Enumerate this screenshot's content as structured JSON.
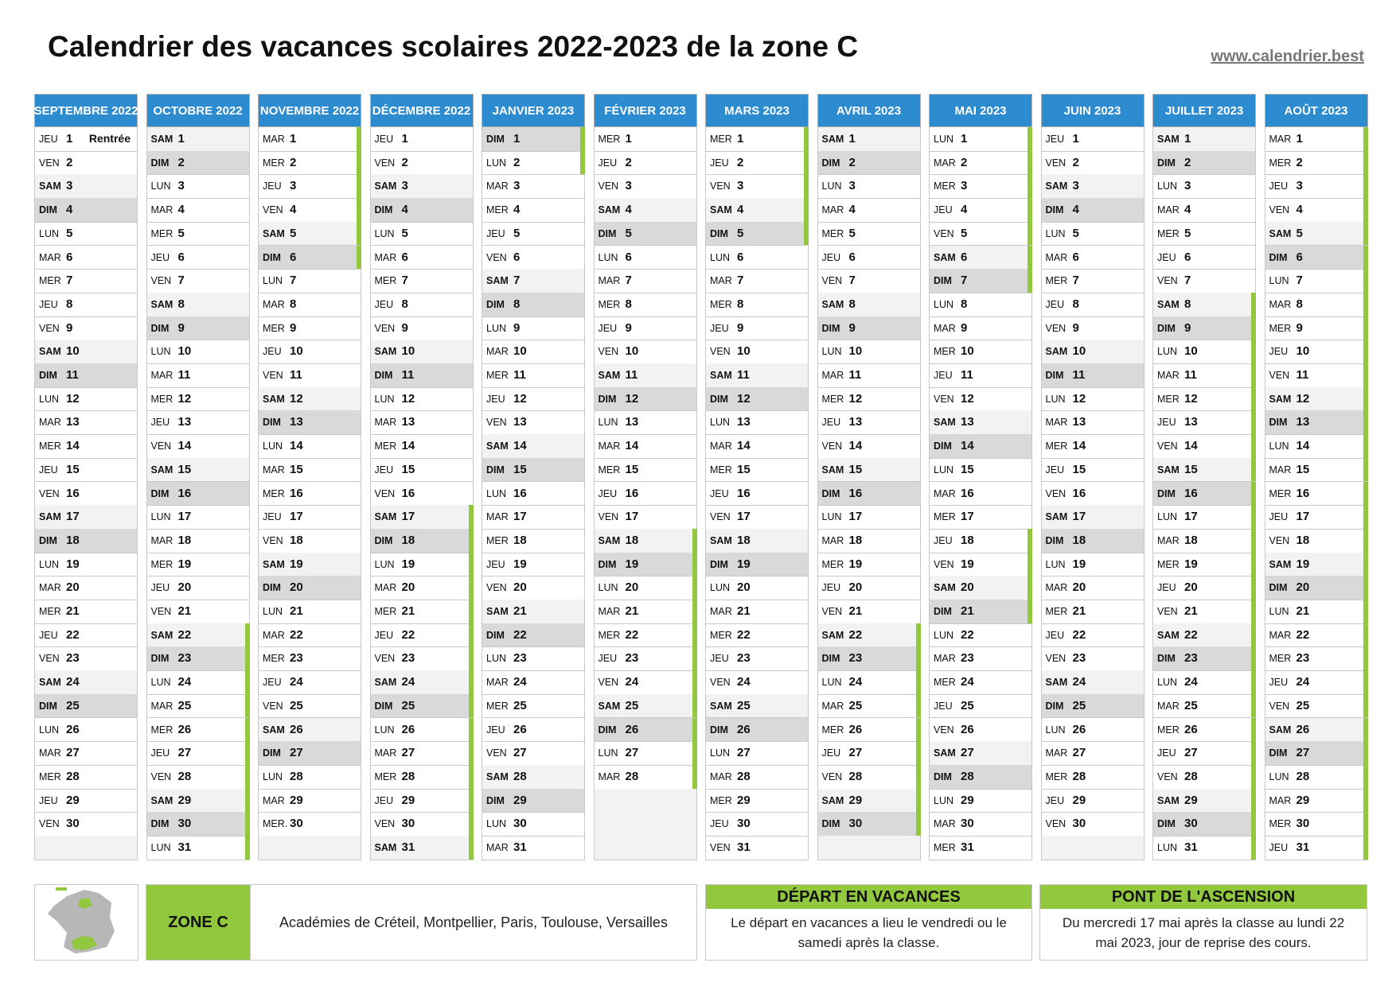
{
  "header": {
    "title": "Calendrier des vacances scolaires 2022-2023 de la zone C",
    "url": "www.calendrier.best"
  },
  "months": [
    {
      "name": "SEPTEMBRE 2022",
      "days": [
        [
          "JEU",
          1,
          "Rentrée"
        ],
        [
          "VEN",
          2
        ],
        [
          "SAM",
          3
        ],
        [
          "DIM",
          4
        ],
        [
          "LUN",
          5
        ],
        [
          "MAR",
          6
        ],
        [
          "MER",
          7
        ],
        [
          "JEU",
          8
        ],
        [
          "VEN",
          9
        ],
        [
          "SAM",
          10
        ],
        [
          "DIM",
          11
        ],
        [
          "LUN",
          12
        ],
        [
          "MAR",
          13
        ],
        [
          "MER",
          14
        ],
        [
          "JEU",
          15
        ],
        [
          "VEN",
          16
        ],
        [
          "SAM",
          17
        ],
        [
          "DIM",
          18
        ],
        [
          "LUN",
          19
        ],
        [
          "MAR",
          20
        ],
        [
          "MER",
          21
        ],
        [
          "JEU",
          22
        ],
        [
          "VEN",
          23
        ],
        [
          "SAM",
          24
        ],
        [
          "DIM",
          25
        ],
        [
          "LUN",
          26
        ],
        [
          "MAR",
          27
        ],
        [
          "MER",
          28
        ],
        [
          "JEU",
          29
        ],
        [
          "VEN",
          30
        ]
      ]
    },
    {
      "name": "OCTOBRE 2022",
      "days": [
        [
          "SAM",
          1
        ],
        [
          "DIM",
          2
        ],
        [
          "LUN",
          3
        ],
        [
          "MAR",
          4
        ],
        [
          "MER",
          5
        ],
        [
          "JEU",
          6
        ],
        [
          "VEN",
          7
        ],
        [
          "SAM",
          8
        ],
        [
          "DIM",
          9
        ],
        [
          "LUN",
          10
        ],
        [
          "MAR",
          11
        ],
        [
          "MER",
          12
        ],
        [
          "JEU",
          13
        ],
        [
          "VEN",
          14
        ],
        [
          "SAM",
          15
        ],
        [
          "DIM",
          16
        ],
        [
          "LUN",
          17
        ],
        [
          "MAR",
          18
        ],
        [
          "MER",
          19
        ],
        [
          "JEU",
          20
        ],
        [
          "VEN",
          21
        ],
        [
          "SAM",
          22
        ],
        [
          "DIM",
          23
        ],
        [
          "LUN",
          24
        ],
        [
          "MAR",
          25
        ],
        [
          "MER",
          26
        ],
        [
          "JEU",
          27
        ],
        [
          "VEN",
          28
        ],
        [
          "SAM",
          29
        ],
        [
          "DIM",
          30
        ],
        [
          "LUN",
          31
        ]
      ]
    },
    {
      "name": "NOVEMBRE 2022",
      "days": [
        [
          "MAR",
          1
        ],
        [
          "MER",
          2
        ],
        [
          "JEU",
          3
        ],
        [
          "VEN",
          4
        ],
        [
          "SAM",
          5
        ],
        [
          "DIM",
          6
        ],
        [
          "LUN",
          7
        ],
        [
          "MAR",
          8
        ],
        [
          "MER",
          9
        ],
        [
          "JEU",
          10
        ],
        [
          "VEN",
          11
        ],
        [
          "SAM",
          12
        ],
        [
          "DIM",
          13
        ],
        [
          "LUN",
          14
        ],
        [
          "MAR",
          15
        ],
        [
          "MER",
          16
        ],
        [
          "JEU",
          17
        ],
        [
          "VEN",
          18
        ],
        [
          "SAM",
          19
        ],
        [
          "DIM",
          20
        ],
        [
          "LUN",
          21
        ],
        [
          "MAR",
          22
        ],
        [
          "MER",
          23
        ],
        [
          "JEU",
          24
        ],
        [
          "VEN",
          25
        ],
        [
          "SAM",
          26
        ],
        [
          "DIM",
          27
        ],
        [
          "LUN",
          28
        ],
        [
          "MAR",
          29
        ],
        [
          "MER.",
          30
        ]
      ]
    },
    {
      "name": "DÉCEMBRE 2022",
      "days": [
        [
          "JEU",
          1
        ],
        [
          "VEN",
          2
        ],
        [
          "SAM",
          3
        ],
        [
          "DIM",
          4
        ],
        [
          "LUN",
          5
        ],
        [
          "MAR",
          6
        ],
        [
          "MER",
          7
        ],
        [
          "JEU",
          8
        ],
        [
          "VEN",
          9
        ],
        [
          "SAM",
          10
        ],
        [
          "DIM",
          11
        ],
        [
          "LUN",
          12
        ],
        [
          "MAR",
          13
        ],
        [
          "MER",
          14
        ],
        [
          "JEU",
          15
        ],
        [
          "VEN",
          16
        ],
        [
          "SAM",
          17
        ],
        [
          "DIM",
          18
        ],
        [
          "LUN",
          19
        ],
        [
          "MAR",
          20
        ],
        [
          "MER",
          21
        ],
        [
          "JEU",
          22
        ],
        [
          "VEN",
          23
        ],
        [
          "SAM",
          24
        ],
        [
          "DIM",
          25
        ],
        [
          "LUN",
          26
        ],
        [
          "MAR",
          27
        ],
        [
          "MER",
          28
        ],
        [
          "JEU",
          29
        ],
        [
          "VEN",
          30
        ],
        [
          "SAM",
          31
        ]
      ]
    },
    {
      "name": "JANVIER 2023",
      "days": [
        [
          "DIM",
          1
        ],
        [
          "LUN",
          2
        ],
        [
          "MAR",
          3
        ],
        [
          "MER",
          4
        ],
        [
          "JEU",
          5
        ],
        [
          "VEN",
          6
        ],
        [
          "SAM",
          7
        ],
        [
          "DIM",
          8
        ],
        [
          "LUN",
          9
        ],
        [
          "MAR",
          10
        ],
        [
          "MER",
          11
        ],
        [
          "JEU",
          12
        ],
        [
          "VEN",
          13
        ],
        [
          "SAM",
          14
        ],
        [
          "DIM",
          15
        ],
        [
          "LUN",
          16
        ],
        [
          "MAR",
          17
        ],
        [
          "MER",
          18
        ],
        [
          "JEU",
          19
        ],
        [
          "VEN",
          20
        ],
        [
          "SAM",
          21
        ],
        [
          "DIM",
          22
        ],
        [
          "LUN",
          23
        ],
        [
          "MAR",
          24
        ],
        [
          "MER",
          25
        ],
        [
          "JEU",
          26
        ],
        [
          "VEN",
          27
        ],
        [
          "SAM",
          28
        ],
        [
          "DIM",
          29
        ],
        [
          "LUN",
          30
        ],
        [
          "MAR",
          31
        ]
      ]
    },
    {
      "name": "FÉVRIER 2023",
      "days": [
        [
          "MER",
          1
        ],
        [
          "JEU",
          2
        ],
        [
          "VEN",
          3
        ],
        [
          "SAM",
          4
        ],
        [
          "DIM",
          5
        ],
        [
          "LUN",
          6
        ],
        [
          "MAR",
          7
        ],
        [
          "MER",
          8
        ],
        [
          "JEU",
          9
        ],
        [
          "VEN",
          10
        ],
        [
          "SAM",
          11
        ],
        [
          "DIM",
          12
        ],
        [
          "LUN",
          13
        ],
        [
          "MAR",
          14
        ],
        [
          "MER",
          15
        ],
        [
          "JEU",
          16
        ],
        [
          "VEN",
          17
        ],
        [
          "SAM",
          18
        ],
        [
          "DIM",
          19
        ],
        [
          "LUN",
          20
        ],
        [
          "MAR",
          21
        ],
        [
          "MER",
          22
        ],
        [
          "JEU",
          23
        ],
        [
          "VEN",
          24
        ],
        [
          "SAM",
          25
        ],
        [
          "DIM",
          26
        ],
        [
          "LUN",
          27
        ],
        [
          "MAR",
          28
        ]
      ]
    },
    {
      "name": "MARS 2023",
      "days": [
        [
          "MER",
          1
        ],
        [
          "JEU",
          2
        ],
        [
          "VEN",
          3
        ],
        [
          "SAM",
          4
        ],
        [
          "DIM",
          5
        ],
        [
          "LUN",
          6
        ],
        [
          "MAR",
          7
        ],
        [
          "MER",
          8
        ],
        [
          "JEU",
          9
        ],
        [
          "VEN",
          10
        ],
        [
          "SAM",
          11
        ],
        [
          "DIM",
          12
        ],
        [
          "LUN",
          13
        ],
        [
          "MAR",
          14
        ],
        [
          "MER",
          15
        ],
        [
          "JEU",
          16
        ],
        [
          "VEN",
          17
        ],
        [
          "SAM",
          18
        ],
        [
          "DIM",
          19
        ],
        [
          "LUN",
          20
        ],
        [
          "MAR",
          21
        ],
        [
          "MER",
          22
        ],
        [
          "JEU",
          23
        ],
        [
          "VEN",
          24
        ],
        [
          "SAM",
          25
        ],
        [
          "DIM",
          26
        ],
        [
          "LUN",
          27
        ],
        [
          "MAR",
          28
        ],
        [
          "MER",
          29
        ],
        [
          "JEU",
          30
        ],
        [
          "VEN",
          31
        ]
      ]
    },
    {
      "name": "AVRIL 2023",
      "days": [
        [
          "SAM",
          1
        ],
        [
          "DIM",
          2
        ],
        [
          "LUN",
          3
        ],
        [
          "MAR",
          4
        ],
        [
          "MER",
          5
        ],
        [
          "JEU",
          6
        ],
        [
          "VEN",
          7
        ],
        [
          "SAM",
          8
        ],
        [
          "DIM",
          9
        ],
        [
          "LUN",
          10
        ],
        [
          "MAR",
          11
        ],
        [
          "MER",
          12
        ],
        [
          "JEU",
          13
        ],
        [
          "VEN",
          14
        ],
        [
          "SAM",
          15
        ],
        [
          "DIM",
          16
        ],
        [
          "LUN",
          17
        ],
        [
          "MAR",
          18
        ],
        [
          "MER",
          19
        ],
        [
          "JEU",
          20
        ],
        [
          "VEN",
          21
        ],
        [
          "SAM",
          22
        ],
        [
          "DIM",
          23
        ],
        [
          "LUN",
          24
        ],
        [
          "MAR",
          25
        ],
        [
          "MER",
          26
        ],
        [
          "JEU",
          27
        ],
        [
          "VEN",
          28
        ],
        [
          "SAM",
          29
        ],
        [
          "DIM",
          30
        ]
      ]
    },
    {
      "name": "MAI 2023",
      "days": [
        [
          "LUN",
          1
        ],
        [
          "MAR",
          2
        ],
        [
          "MER",
          3
        ],
        [
          "JEU",
          4
        ],
        [
          "VEN",
          5
        ],
        [
          "SAM",
          6
        ],
        [
          "DIM",
          7
        ],
        [
          "LUN",
          8
        ],
        [
          "MAR",
          9
        ],
        [
          "MER",
          10
        ],
        [
          "JEU",
          11
        ],
        [
          "VEN",
          12
        ],
        [
          "SAM",
          13
        ],
        [
          "DIM",
          14
        ],
        [
          "LUN",
          15
        ],
        [
          "MAR",
          16
        ],
        [
          "MER",
          17
        ],
        [
          "JEU",
          18
        ],
        [
          "VEN",
          19
        ],
        [
          "SAM",
          20
        ],
        [
          "DIM",
          21
        ],
        [
          "LUN",
          22
        ],
        [
          "MAR",
          23
        ],
        [
          "MER",
          24
        ],
        [
          "JEU",
          25
        ],
        [
          "VEN",
          26
        ],
        [
          "SAM",
          27
        ],
        [
          "DIM",
          28
        ],
        [
          "LUN",
          29
        ],
        [
          "MAR",
          30
        ],
        [
          "MER",
          31
        ]
      ]
    },
    {
      "name": "JUIN 2023",
      "days": [
        [
          "JEU",
          1
        ],
        [
          "VEN",
          2
        ],
        [
          "SAM",
          3
        ],
        [
          "DIM",
          4
        ],
        [
          "LUN",
          5
        ],
        [
          "MAR",
          6
        ],
        [
          "MER",
          7
        ],
        [
          "JEU",
          8
        ],
        [
          "VEN",
          9
        ],
        [
          "SAM",
          10
        ],
        [
          "DIM",
          11
        ],
        [
          "LUN",
          12
        ],
        [
          "MAR",
          13
        ],
        [
          "MER",
          14
        ],
        [
          "JEU",
          15
        ],
        [
          "VEN",
          16
        ],
        [
          "SAM",
          17
        ],
        [
          "DIM",
          18
        ],
        [
          "LUN",
          19
        ],
        [
          "MAR",
          20
        ],
        [
          "MER",
          21
        ],
        [
          "JEU",
          22
        ],
        [
          "VEN",
          23
        ],
        [
          "SAM",
          24
        ],
        [
          "DIM",
          25
        ],
        [
          "LUN",
          26
        ],
        [
          "MAR",
          27
        ],
        [
          "MER",
          28
        ],
        [
          "JEU",
          29
        ],
        [
          "VEN",
          30
        ]
      ]
    },
    {
      "name": "JUILLET 2023",
      "days": [
        [
          "SAM",
          1
        ],
        [
          "DIM",
          2
        ],
        [
          "LUN",
          3
        ],
        [
          "MAR",
          4
        ],
        [
          "MER",
          5
        ],
        [
          "JEU",
          6
        ],
        [
          "VEN",
          7
        ],
        [
          "SAM",
          8
        ],
        [
          "DIM",
          9
        ],
        [
          "LUN",
          10
        ],
        [
          "MAR",
          11
        ],
        [
          "MER",
          12
        ],
        [
          "JEU",
          13
        ],
        [
          "VEN",
          14
        ],
        [
          "SAM",
          15
        ],
        [
          "DIM",
          16
        ],
        [
          "LUN",
          17
        ],
        [
          "MAR",
          18
        ],
        [
          "MER",
          19
        ],
        [
          "JEU",
          20
        ],
        [
          "VEN",
          21
        ],
        [
          "SAM",
          22
        ],
        [
          "DIM",
          23
        ],
        [
          "LUN",
          24
        ],
        [
          "MAR",
          25
        ],
        [
          "MER",
          26
        ],
        [
          "JEU",
          27
        ],
        [
          "VEN",
          28
        ],
        [
          "SAM",
          29
        ],
        [
          "DIM",
          30
        ],
        [
          "LUN",
          31
        ]
      ]
    },
    {
      "name": "AOÛT 2023",
      "days": [
        [
          "MAR",
          1
        ],
        [
          "MER",
          2
        ],
        [
          "JEU",
          3
        ],
        [
          "VEN",
          4
        ],
        [
          "SAM",
          5
        ],
        [
          "DIM",
          6
        ],
        [
          "LUN",
          7
        ],
        [
          "MAR",
          8
        ],
        [
          "MER",
          9
        ],
        [
          "JEU",
          10
        ],
        [
          "VEN",
          11
        ],
        [
          "SAM",
          12
        ],
        [
          "DIM",
          13
        ],
        [
          "LUN",
          14
        ],
        [
          "MAR",
          15
        ],
        [
          "MER",
          16
        ],
        [
          "JEU",
          17
        ],
        [
          "VEN",
          18
        ],
        [
          "SAM",
          19
        ],
        [
          "DIM",
          20
        ],
        [
          "LUN",
          21
        ],
        [
          "MAR",
          22
        ],
        [
          "MER",
          23
        ],
        [
          "JEU",
          24
        ],
        [
          "VEN",
          25
        ],
        [
          "SAM",
          26
        ],
        [
          "DIM",
          27
        ],
        [
          "LUN",
          28
        ],
        [
          "MAR",
          29
        ],
        [
          "MER",
          30
        ],
        [
          "JEU",
          31
        ]
      ]
    }
  ],
  "footer": {
    "zone": "ZONE C",
    "academies": "Académies de Créteil, Montpellier, Paris, Toulouse, Versailles",
    "depart": {
      "title": "DÉPART EN VACANCES",
      "text": "Le départ en vacances a lieu le vendredi ou le samedi après la classe."
    },
    "pont": {
      "title": "PONT DE L'ASCENSION",
      "text": "Du mercredi 17 mai après la classe au lundi 22 mai 2023, jour de reprise des cours."
    }
  }
}
